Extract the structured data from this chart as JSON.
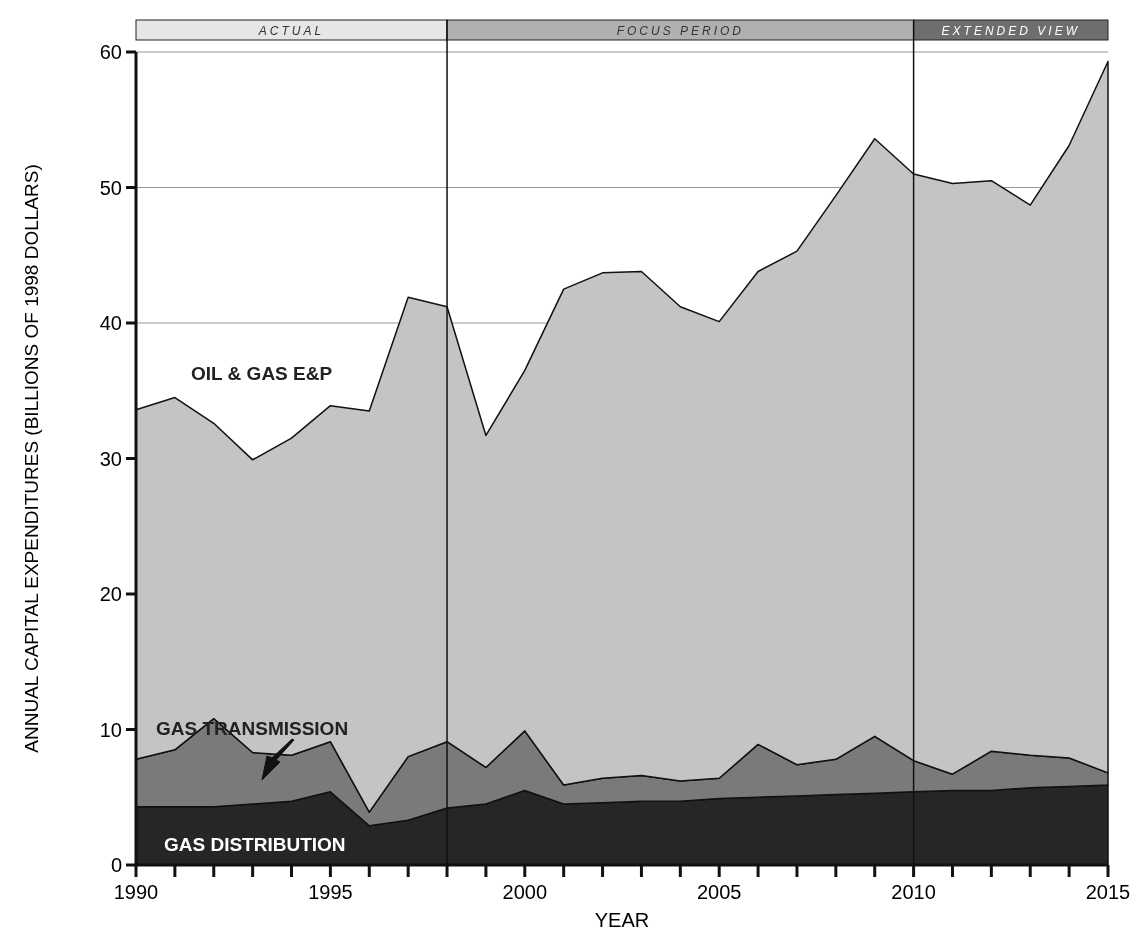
{
  "chart_data": {
    "type": "area",
    "stacked": true,
    "xlabel": "YEAR",
    "ylabel": "ANNUAL CAPITAL EXPENDITURES (BILLIONS OF 1998 DOLLARS)",
    "x": [
      1990,
      1991,
      1992,
      1993,
      1994,
      1995,
      1996,
      1997,
      1998,
      1999,
      2000,
      2001,
      2002,
      2003,
      2004,
      2005,
      2006,
      2007,
      2008,
      2009,
      2010,
      2011,
      2012,
      2013,
      2014,
      2015
    ],
    "series": [
      {
        "name": "GAS DISTRIBUTION",
        "color": "#262626",
        "values": [
          4.3,
          4.3,
          4.3,
          4.5,
          4.7,
          5.4,
          2.9,
          3.3,
          4.2,
          4.5,
          5.5,
          4.5,
          4.6,
          4.7,
          4.7,
          4.9,
          5.0,
          5.1,
          5.2,
          5.3,
          5.4,
          5.5,
          5.5,
          5.7,
          5.8,
          5.9
        ]
      },
      {
        "name": "GAS TRANSMISSION",
        "color": "#7a7a7a",
        "values": [
          3.5,
          4.2,
          6.5,
          3.8,
          3.4,
          3.7,
          1.0,
          4.7,
          4.9,
          2.7,
          4.4,
          1.4,
          1.8,
          1.9,
          1.5,
          1.5,
          3.9,
          2.3,
          2.6,
          4.2,
          2.3,
          1.2,
          2.9,
          2.4,
          2.1,
          0.9
        ]
      },
      {
        "name": "OIL & GAS E&P",
        "color": "#c4c4c4",
        "values": [
          25.8,
          26.0,
          21.8,
          21.6,
          23.4,
          24.8,
          29.6,
          33.9,
          32.1,
          24.5,
          26.6,
          36.6,
          37.3,
          37.2,
          35.0,
          33.7,
          34.9,
          37.9,
          41.6,
          44.1,
          43.3,
          43.6,
          42.1,
          40.6,
          45.2,
          52.5
        ]
      }
    ],
    "xlim": [
      1990,
      2015
    ],
    "xticks": [
      1990,
      {
        "value": 1991,
        "label": null
      },
      {
        "value": 1992,
        "label": null
      },
      {
        "value": 1993,
        "label": null
      },
      {
        "value": 1994,
        "label": null
      },
      1995,
      {
        "value": 1996,
        "label": null
      },
      {
        "value": 1997,
        "label": null
      },
      {
        "value": 1998,
        "label": null
      },
      {
        "value": 1999,
        "label": null
      },
      2000,
      {
        "value": 2001,
        "label": null
      },
      {
        "value": 2002,
        "label": null
      },
      {
        "value": 2003,
        "label": null
      },
      {
        "value": 2004,
        "label": null
      },
      2005,
      {
        "value": 2006,
        "label": null
      },
      {
        "value": 2007,
        "label": null
      },
      {
        "value": 2008,
        "label": null
      },
      {
        "value": 2009,
        "label": null
      },
      2010,
      {
        "value": 2011,
        "label": null
      },
      {
        "value": 2012,
        "label": null
      },
      {
        "value": 2013,
        "label": null
      },
      {
        "value": 2014,
        "label": null
      },
      2015
    ],
    "ylim": [
      0,
      60
    ],
    "yticks": [
      0,
      10,
      20,
      30,
      40,
      50,
      60
    ],
    "grid": "y",
    "legend": false,
    "ref_lines": [
      {
        "axis": "x",
        "value": 1998
      },
      {
        "axis": "x",
        "value": 2010
      }
    ],
    "annotations": [
      "ACTUAL",
      "FOCUS PERIOD",
      "EXTENDED VIEW"
    ]
  }
}
